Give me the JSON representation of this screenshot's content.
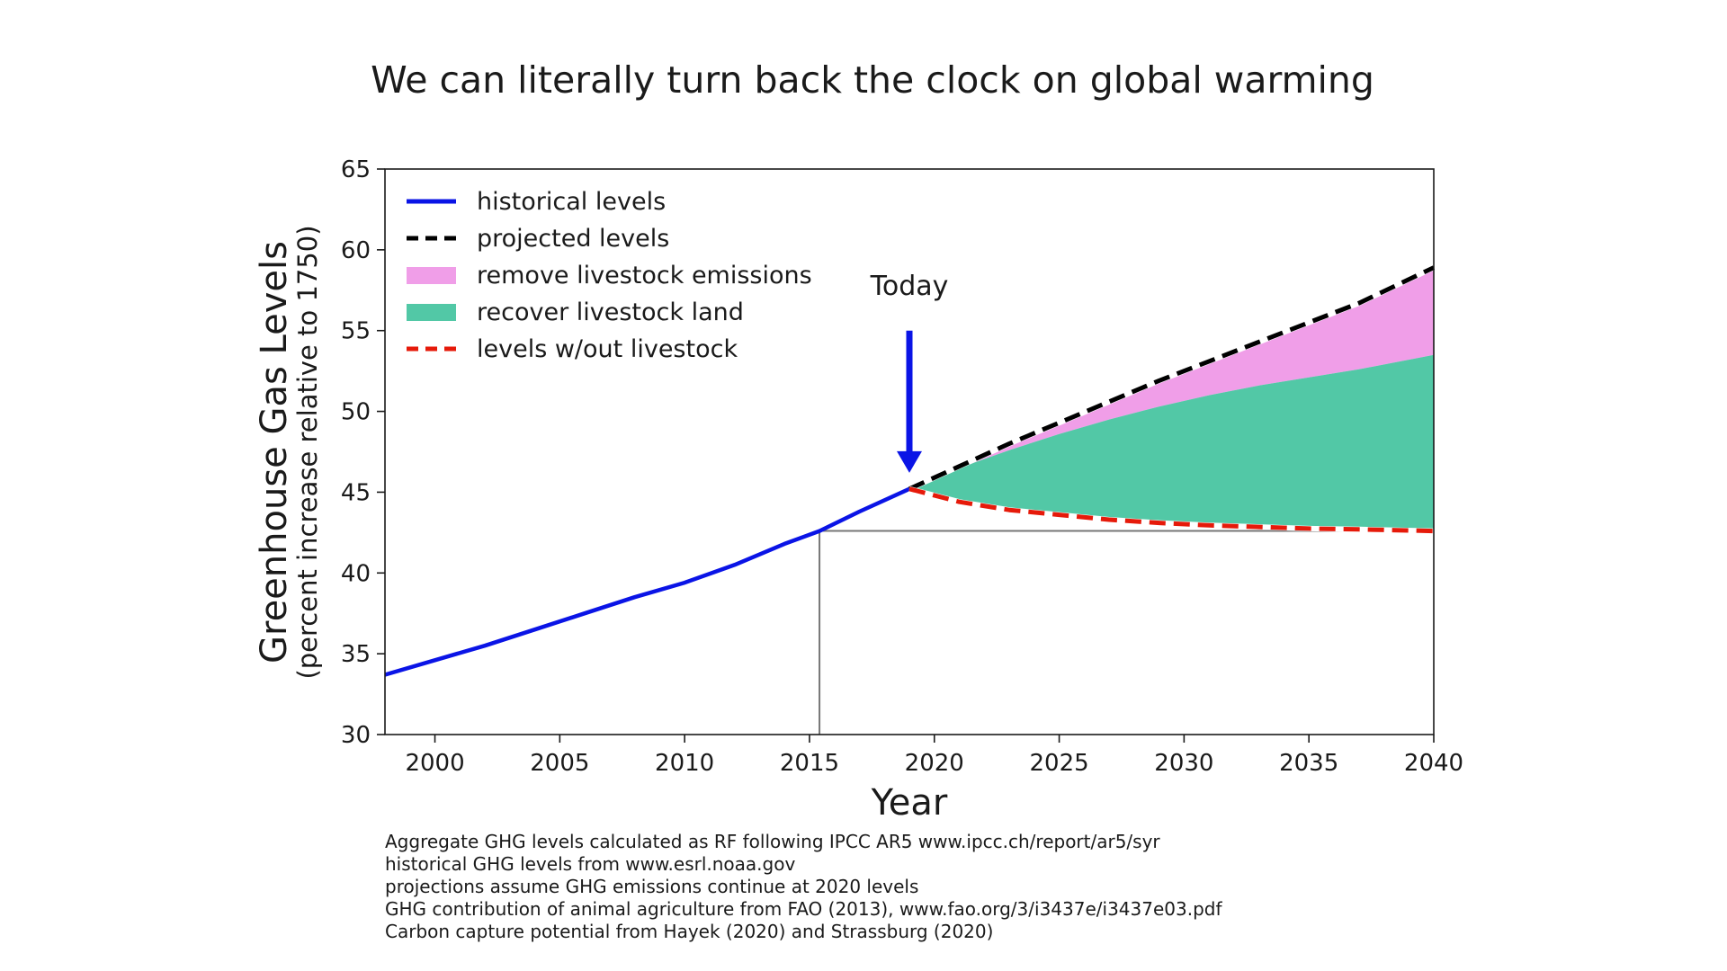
{
  "chart_data": {
    "type": "area",
    "title": "We can literally turn back the clock on global warming",
    "xlabel": "Year",
    "ylabel": "Greenhouse Gas Levels",
    "ylabel_sub": "(percent increase relative to 1750)",
    "xlim": [
      1998,
      2040
    ],
    "ylim": [
      30,
      65
    ],
    "xticks": [
      2000,
      2005,
      2010,
      2015,
      2020,
      2025,
      2030,
      2035,
      2040
    ],
    "yticks": [
      30,
      35,
      40,
      45,
      50,
      55,
      60,
      65
    ],
    "legend_position": "top-left",
    "annotation": {
      "text": "Today",
      "arrow_x": 2019,
      "arrow_from_y": 55,
      "arrow_to_y": 46.2
    },
    "reference_lines": {
      "x": 2015.4,
      "y": 42.6
    },
    "series": [
      {
        "name": "historical levels",
        "style": "line",
        "color": "#0a14e6",
        "x": [
          1998,
          2000,
          2002,
          2004,
          2006,
          2008,
          2010,
          2012,
          2014,
          2015.4,
          2017,
          2019
        ],
        "values": [
          33.7,
          34.6,
          35.5,
          36.5,
          37.5,
          38.5,
          39.4,
          40.5,
          41.8,
          42.6,
          43.8,
          45.2
        ]
      },
      {
        "name": "projected levels",
        "style": "dashed",
        "color": "#000000",
        "x": [
          2019,
          2021,
          2023,
          2025,
          2027,
          2029,
          2031,
          2033,
          2035,
          2037,
          2040
        ],
        "values": [
          45.2,
          46.6,
          48.0,
          49.3,
          50.6,
          51.9,
          53.1,
          54.3,
          55.5,
          56.7,
          58.9
        ]
      },
      {
        "name": "remove livestock emissions",
        "style": "fill",
        "color": "#f09ee8",
        "x": [
          2019,
          2021,
          2023,
          2025,
          2027,
          2029,
          2031,
          2033,
          2035,
          2037,
          2040
        ],
        "lower": [
          45.2,
          46.5,
          47.6,
          48.6,
          49.5,
          50.3,
          51.0,
          51.6,
          52.1,
          52.6,
          53.5
        ],
        "upper": [
          45.2,
          46.6,
          48.0,
          49.3,
          50.6,
          51.9,
          53.1,
          54.3,
          55.5,
          56.7,
          58.9
        ]
      },
      {
        "name": "recover livestock land",
        "style": "fill",
        "color": "#52c8a6",
        "x": [
          2019,
          2021,
          2023,
          2025,
          2027,
          2029,
          2031,
          2033,
          2035,
          2037,
          2040
        ],
        "lower": [
          45.2,
          44.4,
          43.9,
          43.6,
          43.3,
          43.1,
          42.95,
          42.85,
          42.75,
          42.7,
          42.6
        ],
        "upper": [
          45.2,
          46.5,
          47.6,
          48.6,
          49.5,
          50.3,
          51.0,
          51.6,
          52.1,
          52.6,
          53.5
        ]
      },
      {
        "name": "levels w/out livestock",
        "style": "dashed",
        "color": "#e61a0a",
        "x": [
          2019,
          2021,
          2023,
          2025,
          2027,
          2029,
          2031,
          2033,
          2035,
          2037,
          2040
        ],
        "values": [
          45.2,
          44.4,
          43.9,
          43.6,
          43.3,
          43.1,
          42.95,
          42.85,
          42.75,
          42.7,
          42.6
        ]
      }
    ]
  },
  "notes": [
    "Aggregate GHG levels calculated as RF following IPCC AR5 www.ipcc.ch/report/ar5/syr",
    "historical GHG levels from www.esrl.noaa.gov",
    "projections assume GHG emissions continue at 2020 levels",
    "GHG contribution of animal agriculture from FAO (2013), www.fao.org/3/i3437e/i3437e03.pdf",
    "Carbon capture potential from Hayek (2020) and Strassburg (2020)"
  ]
}
